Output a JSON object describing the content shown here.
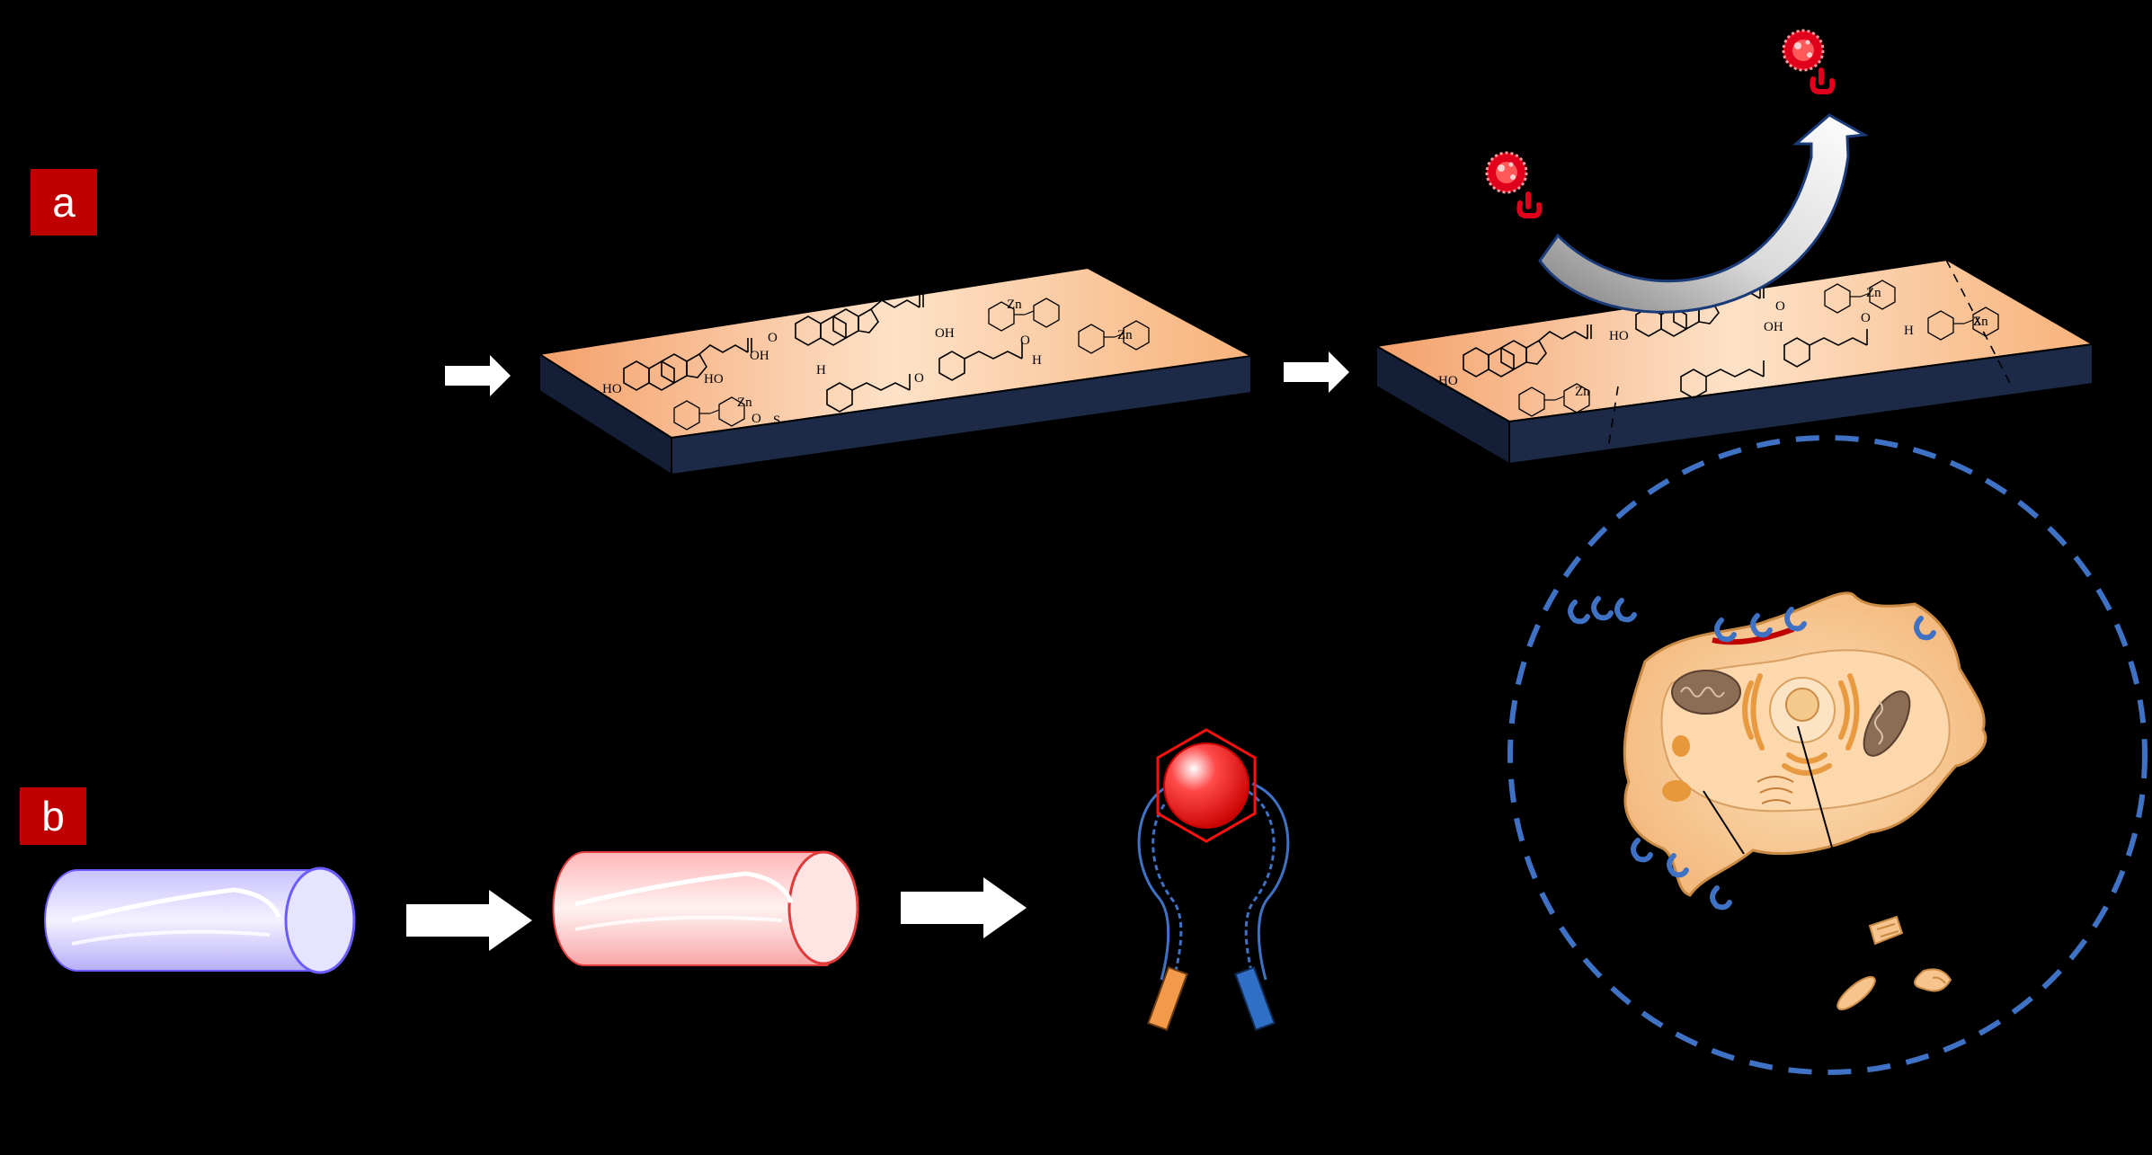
{
  "panels": {
    "a": {
      "label": "a"
    },
    "b": {
      "label": "b"
    }
  },
  "chemistry_labels": {
    "hydroxyl": "HO",
    "acid_oh": "OH",
    "acid_o": "O",
    "aldehyde_h": "H",
    "zinc": "Zn",
    "hydrogen": "H",
    "sulfur": "S",
    "oxygen": "O"
  },
  "colors": {
    "background": "#000000",
    "label_red": "#c00000",
    "substrate_top": "#f7b27a",
    "substrate_side": "#1c2a48",
    "virus_red": "#e0001b",
    "dashed_circle": "#3f72c4",
    "cell_orange": "#f6c48c",
    "tube_blue": "#b9b2ff",
    "tube_pink": "#ffb4b4",
    "sphere_red": "#ff1010"
  }
}
